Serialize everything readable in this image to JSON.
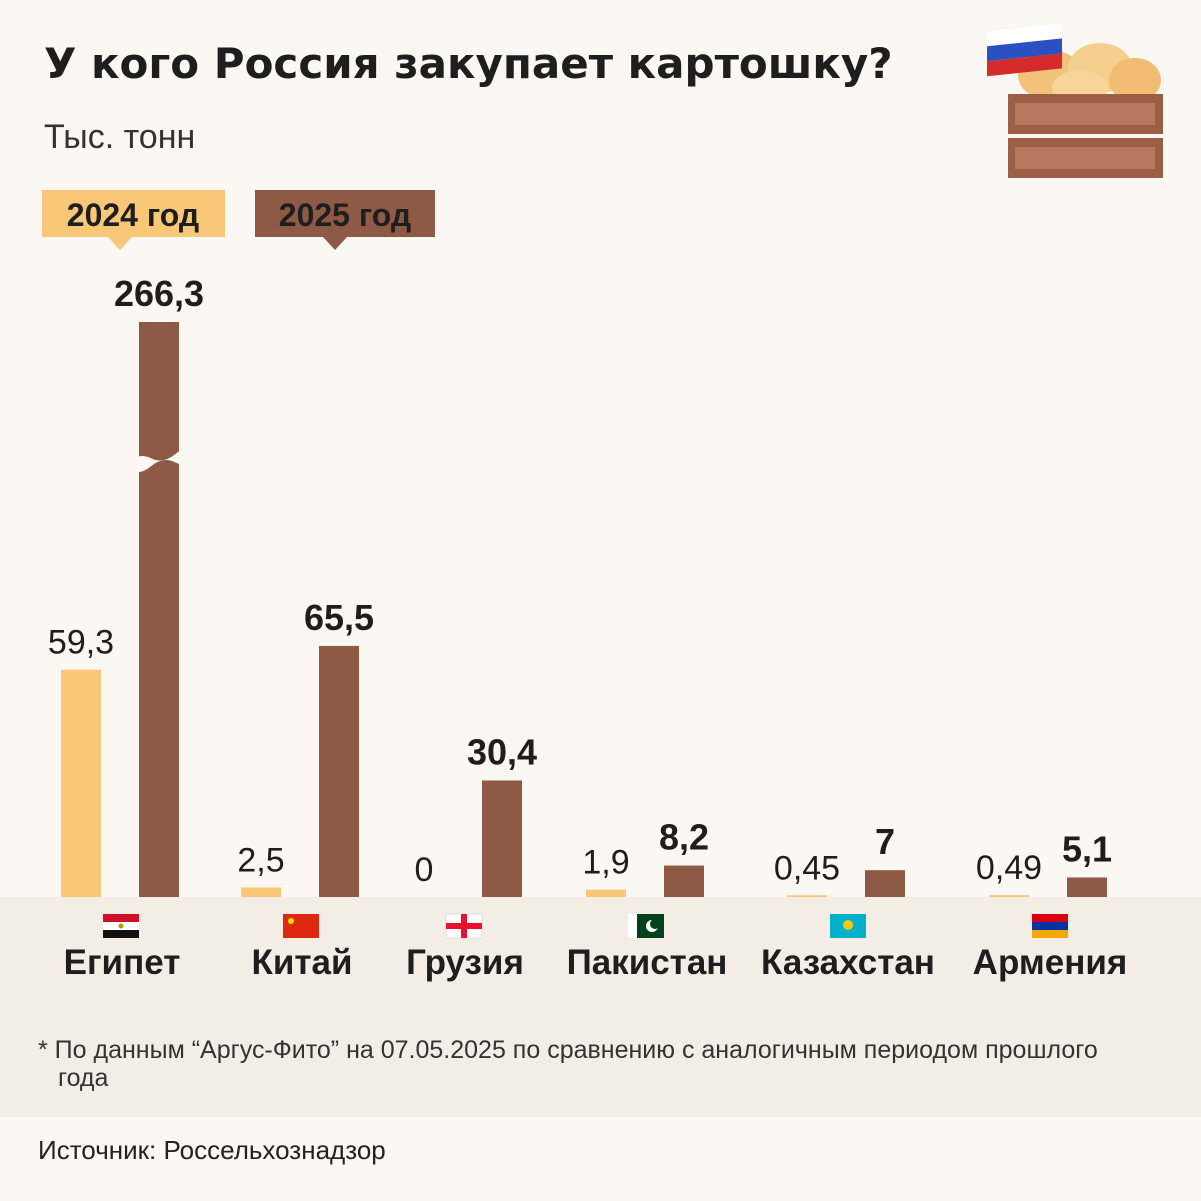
{
  "chart_data": {
    "type": "bar",
    "title": "У кого Россия закупает картошку?",
    "subtitle": "Тыс. тонн",
    "categories": [
      "Египет",
      "Китай",
      "Грузия",
      "Пакистан",
      "Казахстан",
      "Армения"
    ],
    "series": [
      {
        "name": "2024 год",
        "color": "#f8c878",
        "values": [
          59.3,
          2.5,
          0,
          1.9,
          0.45,
          0.49
        ],
        "value_labels": [
          "59,3",
          "2,5",
          "0",
          "1,9",
          "0,45",
          "0,49"
        ]
      },
      {
        "name": "2025 год",
        "color": "#8e5a45",
        "values": [
          266.3,
          65.5,
          30.4,
          8.2,
          7,
          5.1
        ],
        "value_labels": [
          "266,3",
          "65,5",
          "30,4",
          "8,2",
          "7",
          "5,1"
        ]
      }
    ],
    "ylim": [
      0,
      150
    ],
    "axis_break": true,
    "footnote": "* По данным “Аргус-Фито” на 07.05.2025 по сравнению с аналогичным периодом прошлого года",
    "source": "Источник: Россельхознадзор"
  }
}
